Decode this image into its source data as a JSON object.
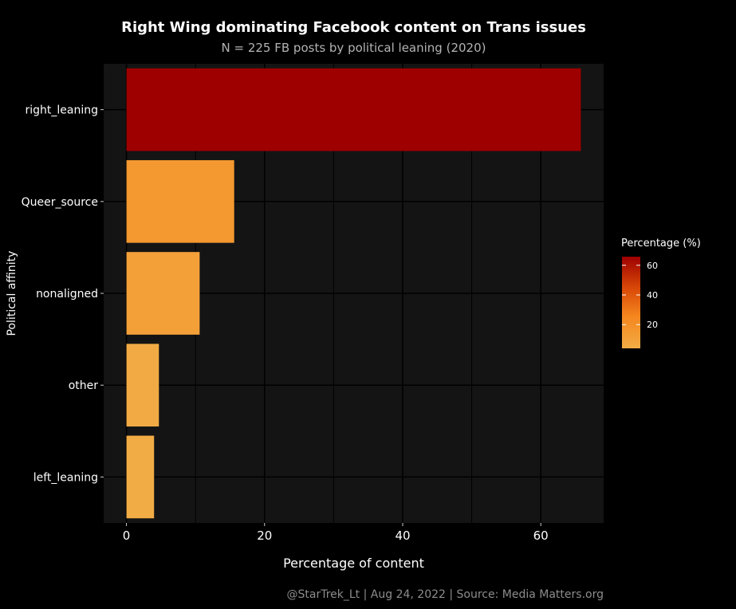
{
  "chart_data": {
    "type": "bar",
    "orientation": "horizontal",
    "title": "Right Wing dominating Facebook content on Trans issues",
    "subtitle": "N = 225 FB posts by political leaning (2020)",
    "caption": "@StarTrek_Lt | Aug 24, 2022 | Source: Media Matters.org",
    "xlabel": "Percentage of content",
    "ylabel": "Political affinity",
    "categories": [
      "right_leaning",
      "Queer_source",
      "nonaligned",
      "other",
      "left_leaning"
    ],
    "values": [
      65.8,
      15.6,
      10.6,
      4.7,
      4.0
    ],
    "xlim": [
      -3.3,
      69.1
    ],
    "xticks": [
      0,
      20,
      40,
      60
    ],
    "xtick_labels": [
      "0",
      "20",
      "40",
      "60"
    ],
    "grid": true,
    "legend": {
      "title": "Percentage (%)",
      "placement": "right",
      "ticks": [
        20,
        40,
        60
      ],
      "tick_labels": [
        "20",
        "40",
        "60"
      ],
      "range": [
        4.0,
        65.8
      ],
      "low_color": "#f2ac45",
      "high_color": "#9e0000"
    },
    "colors": {
      "background": "#000000",
      "panel": "#141414",
      "grid": "#000000"
    }
  }
}
